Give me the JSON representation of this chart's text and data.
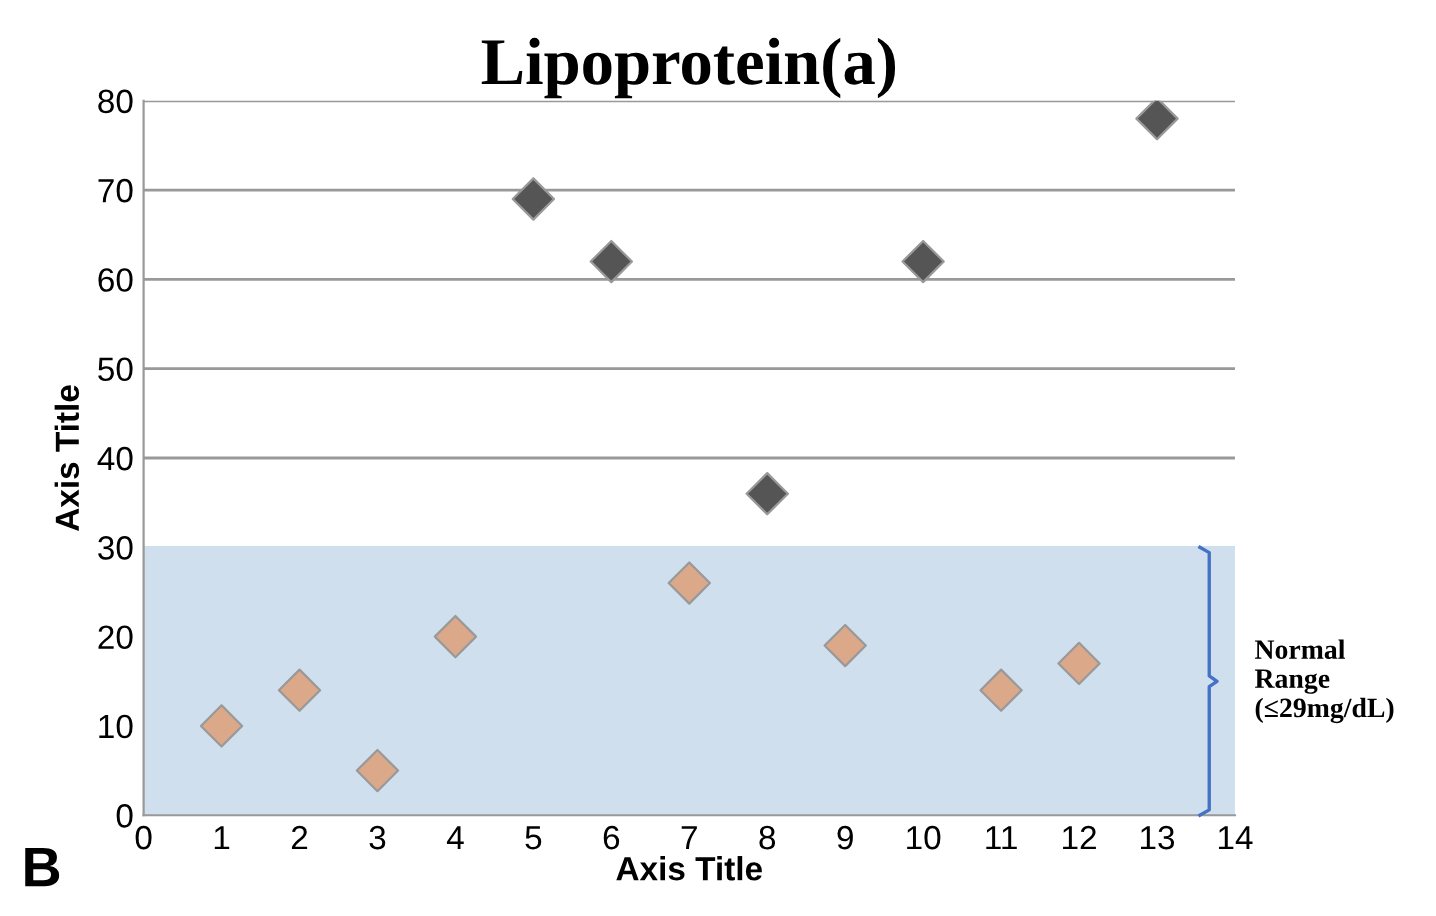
{
  "chart_data": {
    "type": "scatter",
    "title": "Lipoprotein(a)",
    "xlabel": "Axis Title",
    "ylabel": "Axis Title",
    "annotations": [
      "B"
    ],
    "series": [
      {
        "color": "#555555",
        "x": [
          5,
          6,
          8,
          10,
          13
        ],
        "values": [
          69,
          62,
          36,
          62,
          78
        ]
      },
      {
        "color": "#dba88a",
        "x": [
          1,
          2,
          3,
          4,
          7,
          9,
          11,
          12
        ],
        "values": [
          10,
          14,
          5,
          20,
          26,
          19,
          14,
          17
        ]
      }
    ],
    "bands": [
      {
        "axis": "y",
        "from": 0,
        "to": 30,
        "label": "Normal\nRange\n(≤29mg/dL)",
        "color": "#d0dfee"
      }
    ],
    "xlim": [
      0,
      14
    ],
    "xticks": [
      0,
      1,
      2,
      3,
      4,
      5,
      6,
      7,
      8,
      9,
      10,
      11,
      12,
      13,
      14
    ],
    "ylim": [
      0,
      80
    ],
    "yticks": [
      0,
      10,
      20,
      30,
      40,
      50,
      60,
      70,
      80
    ],
    "grid": "y",
    "marker": "diamond",
    "legend": false
  }
}
